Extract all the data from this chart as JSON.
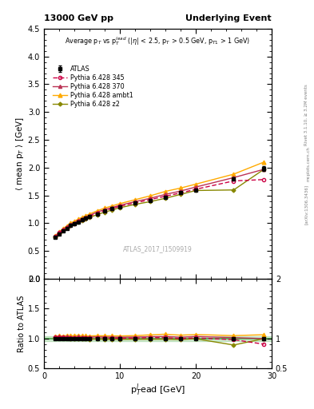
{
  "title_left": "13000 GeV pp",
  "title_right": "Underlying Event",
  "right_label_top": "Rivet 3.1.10, ≥ 3.2M events",
  "arxiv_label": "[arXiv:1306.3436]",
  "mcplots_label": "mcplots.cern.ch",
  "annotation": "ATLAS_2017_I1509919",
  "xlabel": "p$_T^l$ead [GeV]",
  "ylabel": "$\\langle$ mean p$_T$ $\\rangle$ [GeV]",
  "ylabel_ratio": "Ratio to ATLAS",
  "plot_annotation": "Average p$_T$ vs p$_T^{lead}$ (|$\\eta$| < 2.5, p$_T$ > 0.5 GeV, p$_{T1}$ > 1 GeV)",
  "xlim": [
    0,
    30
  ],
  "ylim_main": [
    0,
    4.5
  ],
  "ylim_ratio": [
    0.5,
    2.0
  ],
  "ATLAS_x": [
    1.5,
    2.0,
    2.5,
    3.0,
    3.5,
    4.0,
    4.5,
    5.0,
    5.5,
    6.0,
    7.0,
    8.0,
    9.0,
    10.0,
    12.0,
    14.0,
    16.0,
    18.0,
    20.0,
    25.0,
    29.0
  ],
  "ATLAS_y": [
    0.745,
    0.81,
    0.865,
    0.91,
    0.96,
    0.99,
    1.02,
    1.06,
    1.09,
    1.12,
    1.17,
    1.22,
    1.26,
    1.3,
    1.36,
    1.41,
    1.47,
    1.55,
    1.6,
    1.8,
    1.98
  ],
  "ATLAS_yerr": [
    0.01,
    0.008,
    0.008,
    0.007,
    0.007,
    0.007,
    0.007,
    0.007,
    0.006,
    0.006,
    0.006,
    0.006,
    0.006,
    0.006,
    0.006,
    0.007,
    0.008,
    0.01,
    0.01,
    0.02,
    0.04
  ],
  "p345_x": [
    1.5,
    2.0,
    2.5,
    3.0,
    3.5,
    4.0,
    4.5,
    5.0,
    5.5,
    6.0,
    7.0,
    8.0,
    9.0,
    10.0,
    12.0,
    14.0,
    16.0,
    18.0,
    20.0,
    25.0,
    29.0
  ],
  "p345_y": [
    0.76,
    0.83,
    0.88,
    0.92,
    0.965,
    0.998,
    1.03,
    1.065,
    1.095,
    1.125,
    1.18,
    1.225,
    1.265,
    1.305,
    1.365,
    1.425,
    1.485,
    1.545,
    1.61,
    1.76,
    1.785
  ],
  "p370_x": [
    1.5,
    2.0,
    2.5,
    3.0,
    3.5,
    4.0,
    4.5,
    5.0,
    5.5,
    6.0,
    7.0,
    8.0,
    9.0,
    10.0,
    12.0,
    14.0,
    16.0,
    18.0,
    20.0,
    25.0,
    29.0
  ],
  "p370_y": [
    0.76,
    0.835,
    0.885,
    0.935,
    0.98,
    1.012,
    1.048,
    1.082,
    1.112,
    1.142,
    1.198,
    1.245,
    1.283,
    1.322,
    1.388,
    1.448,
    1.518,
    1.578,
    1.65,
    1.82,
    1.97
  ],
  "pambt1_x": [
    1.5,
    2.0,
    2.5,
    3.0,
    3.5,
    4.0,
    4.5,
    5.0,
    5.5,
    6.0,
    7.0,
    8.0,
    9.0,
    10.0,
    12.0,
    14.0,
    16.0,
    18.0,
    20.0,
    25.0,
    29.0
  ],
  "pambt1_y": [
    0.77,
    0.845,
    0.9,
    0.952,
    1.002,
    1.035,
    1.072,
    1.105,
    1.135,
    1.165,
    1.222,
    1.272,
    1.312,
    1.352,
    1.422,
    1.492,
    1.572,
    1.632,
    1.702,
    1.882,
    2.1
  ],
  "pz2_x": [
    1.5,
    2.0,
    2.5,
    3.0,
    3.5,
    4.0,
    4.5,
    5.0,
    5.5,
    6.0,
    7.0,
    8.0,
    9.0,
    10.0,
    12.0,
    14.0,
    16.0,
    18.0,
    20.0,
    25.0,
    29.0
  ],
  "pz2_y": [
    0.76,
    0.82,
    0.87,
    0.918,
    0.958,
    0.99,
    1.018,
    1.048,
    1.078,
    1.1,
    1.155,
    1.198,
    1.238,
    1.278,
    1.338,
    1.388,
    1.448,
    1.518,
    1.588,
    1.598,
    1.97
  ],
  "color_ATLAS": "#000000",
  "color_p345": "#cc0044",
  "color_p370": "#bb3355",
  "color_pambt1": "#ffaa00",
  "color_pz2": "#888800",
  "ratio_band_color": "#44aa44",
  "bg_color": "#ffffff"
}
